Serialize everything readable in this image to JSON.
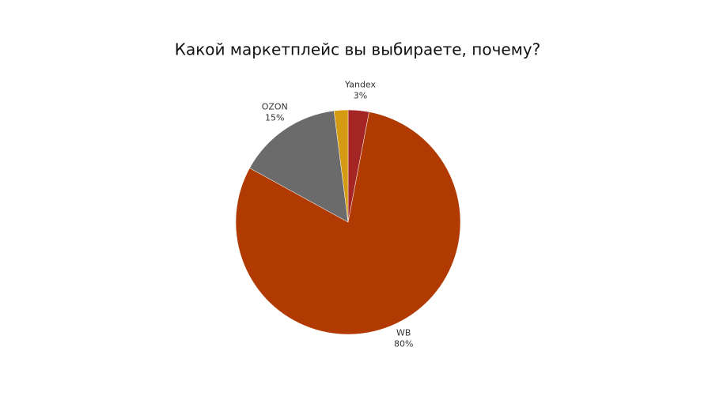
{
  "chart_data": {
    "type": "pie",
    "title": "Какой маркетплейс вы выбираете, почему?",
    "categories": [
      "Yandex",
      "WB",
      "OZON",
      null
    ],
    "values": [
      3,
      80,
      15,
      2
    ],
    "value_labels": [
      "3%",
      "80%",
      "15%",
      null
    ],
    "colors": [
      "#a52424",
      "#b03a02",
      "#6b6b6b",
      "#d49a12"
    ]
  }
}
